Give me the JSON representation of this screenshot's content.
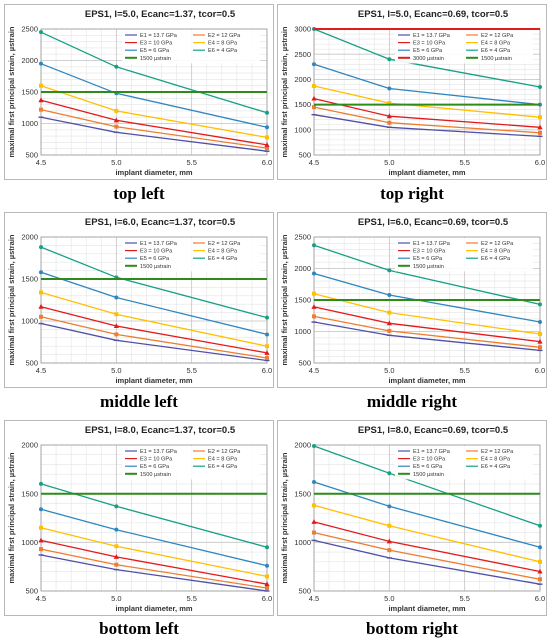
{
  "figure": {
    "captions": [
      "top left",
      "top right",
      "middle left",
      "middle right",
      "bottom left",
      "bottom right"
    ]
  },
  "chart_data": [
    {
      "type": "line",
      "title": "EPS1, l=5.0, Ecanc=1.37, tcor=0.5",
      "xlabel": "implant diameter, mm",
      "ylabel": "maximal first principal strain, µstrain",
      "x": [
        4.5,
        5.0,
        6.0
      ],
      "xlim": [
        4.5,
        6.0
      ],
      "xticks": [
        "4.5",
        "5.0",
        "5.5",
        "6.0"
      ],
      "ylim": [
        500,
        2500
      ],
      "yticks": [
        "500",
        "1000",
        "1500",
        "2000",
        "2500"
      ],
      "grid": true,
      "legend_position": "top-right",
      "series": [
        {
          "name": "E1 = 13.7 GPa",
          "color": "#4f4fa6",
          "values": [
            1100,
            860,
            560
          ]
        },
        {
          "name": "E2 = 12 GPa",
          "color": "#ed7d31",
          "values": [
            1220,
            950,
            610
          ]
        },
        {
          "name": "E3 = 10 GPa",
          "color": "#e31a1c",
          "values": [
            1370,
            1050,
            660
          ]
        },
        {
          "name": "E4 = 8 GPa",
          "color": "#ffc000",
          "values": [
            1600,
            1200,
            780
          ]
        },
        {
          "name": "E5 = 6 GPa",
          "color": "#2e86c1",
          "values": [
            1950,
            1480,
            940
          ]
        },
        {
          "name": "E6 = 4 GPa",
          "color": "#16a085",
          "values": [
            2450,
            1900,
            1170
          ]
        },
        {
          "name": "1500 µstrain",
          "color": "#2e8b1a",
          "values": [
            1500,
            1500,
            1500
          ]
        }
      ]
    },
    {
      "type": "line",
      "title": "EPS1, l=5.0, Ecanc=0.69, tcor=0.5",
      "xlabel": "implant diameter, mm",
      "ylabel": "maximal first principal strain, µstrain",
      "x": [
        4.5,
        5.0,
        6.0
      ],
      "xlim": [
        4.5,
        6.0
      ],
      "xticks": [
        "4.5",
        "5.0",
        "5.5",
        "6.0"
      ],
      "ylim": [
        500,
        3000
      ],
      "yticks": [
        "500",
        "1000",
        "1500",
        "2000",
        "2500",
        "3000"
      ],
      "grid": true,
      "legend_position": "top-right",
      "series": [
        {
          "name": "E1 = 13.7 GPa",
          "color": "#4f4fa6",
          "values": [
            1300,
            1050,
            870
          ]
        },
        {
          "name": "E2 = 12 GPa",
          "color": "#ed7d31",
          "values": [
            1450,
            1140,
            940
          ]
        },
        {
          "name": "E3 = 10 GPa",
          "color": "#e31a1c",
          "values": [
            1620,
            1270,
            1050
          ]
        },
        {
          "name": "E4 = 8 GPa",
          "color": "#ffc000",
          "values": [
            1870,
            1530,
            1250
          ]
        },
        {
          "name": "E5 = 6 GPa",
          "color": "#2e86c1",
          "values": [
            2300,
            1820,
            1500
          ]
        },
        {
          "name": "E6 = 4 GPa",
          "color": "#16a085",
          "values": [
            3000,
            2400,
            1850
          ]
        },
        {
          "name": "3000 µstrain",
          "color": "#e31a1c",
          "values": [
            3000,
            3000,
            3000
          ]
        },
        {
          "name": "1500 µstrain",
          "color": "#2e8b1a",
          "values": [
            1500,
            1500,
            1500
          ]
        }
      ]
    },
    {
      "type": "line",
      "title": "EPS1, l=6.0, Ecanc=1.37, tcor=0.5",
      "xlabel": "implant diameter, mm",
      "ylabel": "maximal first principal strain, µstrain",
      "x": [
        4.5,
        5.0,
        6.0
      ],
      "xlim": [
        4.5,
        6.0
      ],
      "xticks": [
        "4.5",
        "5.0",
        "5.5",
        "6.0"
      ],
      "ylim": [
        500,
        2000
      ],
      "yticks": [
        "500",
        "1000",
        "1500",
        "2000"
      ],
      "grid": true,
      "legend_position": "top-right",
      "series": [
        {
          "name": "E1 = 13.7 GPa",
          "color": "#4f4fa6",
          "values": [
            970,
            770,
            530
          ]
        },
        {
          "name": "E2 = 12 GPa",
          "color": "#ed7d31",
          "values": [
            1050,
            840,
            560
          ]
        },
        {
          "name": "E3 = 10 GPa",
          "color": "#e31a1c",
          "values": [
            1170,
            940,
            620
          ]
        },
        {
          "name": "E4 = 8 GPa",
          "color": "#ffc000",
          "values": [
            1340,
            1080,
            700
          ]
        },
        {
          "name": "E5 = 6 GPa",
          "color": "#2e86c1",
          "values": [
            1580,
            1280,
            840
          ]
        },
        {
          "name": "E6 = 4 GPa",
          "color": "#16a085",
          "values": [
            1880,
            1520,
            1040
          ]
        },
        {
          "name": "1500 µstrain",
          "color": "#2e8b1a",
          "values": [
            1500,
            1500,
            1500
          ]
        }
      ]
    },
    {
      "type": "line",
      "title": "EPS1, l=6.0, Ecanc=0.69, tcor=0.5",
      "xlabel": "implant diameter, mm",
      "ylabel": "maximal first principal strain, µstrain",
      "x": [
        4.5,
        5.0,
        6.0
      ],
      "xlim": [
        4.5,
        6.0
      ],
      "xticks": [
        "4.5",
        "5.0",
        "5.5",
        "6.0"
      ],
      "ylim": [
        500,
        2500
      ],
      "yticks": [
        "500",
        "1000",
        "1500",
        "2000",
        "2500"
      ],
      "grid": true,
      "legend_position": "top-right",
      "series": [
        {
          "name": "E1 = 13.7 GPa",
          "color": "#4f4fa6",
          "values": [
            1150,
            940,
            700
          ]
        },
        {
          "name": "E2 = 12 GPa",
          "color": "#ed7d31",
          "values": [
            1240,
            1010,
            750
          ]
        },
        {
          "name": "E3 = 10 GPa",
          "color": "#e31a1c",
          "values": [
            1390,
            1130,
            840
          ]
        },
        {
          "name": "E4 = 8 GPa",
          "color": "#ffc000",
          "values": [
            1600,
            1300,
            960
          ]
        },
        {
          "name": "E5 = 6 GPa",
          "color": "#2e86c1",
          "values": [
            1920,
            1580,
            1150
          ]
        },
        {
          "name": "E6 = 4 GPa",
          "color": "#16a085",
          "values": [
            2370,
            1970,
            1430
          ]
        },
        {
          "name": "1500 µstrain",
          "color": "#2e8b1a",
          "values": [
            1500,
            1500,
            1500
          ]
        }
      ]
    },
    {
      "type": "line",
      "title": "EPS1, l=8.0, Ecanc=1.37, tcor=0.5",
      "xlabel": "implant diameter, mm",
      "ylabel": "maximal first principal strain, µstrain",
      "x": [
        4.5,
        5.0,
        6.0
      ],
      "xlim": [
        4.5,
        6.0
      ],
      "xticks": [
        "4.5",
        "5.0",
        "5.5",
        "6.0"
      ],
      "ylim": [
        500,
        2000
      ],
      "yticks": [
        "500",
        "1000",
        "1500",
        "2000"
      ],
      "grid": true,
      "legend_position": "top-right",
      "series": [
        {
          "name": "E1 = 13.7 GPa",
          "color": "#4f4fa6",
          "values": [
            870,
            720,
            500
          ]
        },
        {
          "name": "E2 = 12 GPa",
          "color": "#ed7d31",
          "values": [
            930,
            770,
            530
          ]
        },
        {
          "name": "E3 = 10 GPa",
          "color": "#e31a1c",
          "values": [
            1020,
            850,
            570
          ]
        },
        {
          "name": "E4 = 8 GPa",
          "color": "#ffc000",
          "values": [
            1150,
            960,
            650
          ]
        },
        {
          "name": "E5 = 6 GPa",
          "color": "#2e86c1",
          "values": [
            1340,
            1130,
            760
          ]
        },
        {
          "name": "E6 = 4 GPa",
          "color": "#16a085",
          "values": [
            1600,
            1370,
            950
          ]
        },
        {
          "name": "1500 µstrain",
          "color": "#2e8b1a",
          "values": [
            1500,
            1500,
            1500
          ]
        }
      ]
    },
    {
      "type": "line",
      "title": "EPS1, l=8.0, Ecanc=0.69, tcor=0.5",
      "xlabel": "implant diameter, mm",
      "ylabel": "maximal first principal strain, µstrain",
      "x": [
        4.5,
        5.0,
        6.0
      ],
      "xlim": [
        4.5,
        6.0
      ],
      "xticks": [
        "4.5",
        "5.0",
        "5.5",
        "6.0"
      ],
      "ylim": [
        500,
        2000
      ],
      "yticks": [
        "500",
        "1000",
        "1500",
        "2000"
      ],
      "grid": true,
      "legend_position": "top-right",
      "series": [
        {
          "name": "E1 = 13.7 GPa",
          "color": "#4f4fa6",
          "values": [
            1020,
            840,
            570
          ]
        },
        {
          "name": "E2 = 12 GPa",
          "color": "#ed7d31",
          "values": [
            1100,
            920,
            620
          ]
        },
        {
          "name": "E3 = 10 GPa",
          "color": "#e31a1c",
          "values": [
            1210,
            1010,
            700
          ]
        },
        {
          "name": "E4 = 8 GPa",
          "color": "#ffc000",
          "values": [
            1380,
            1170,
            800
          ]
        },
        {
          "name": "E5 = 6 GPa",
          "color": "#2e86c1",
          "values": [
            1620,
            1370,
            950
          ]
        },
        {
          "name": "E6 = 4 GPa",
          "color": "#16a085",
          "values": [
            1990,
            1710,
            1170
          ]
        },
        {
          "name": "1500 µstrain",
          "color": "#2e8b1a",
          "values": [
            1500,
            1500,
            1500
          ]
        }
      ]
    }
  ]
}
